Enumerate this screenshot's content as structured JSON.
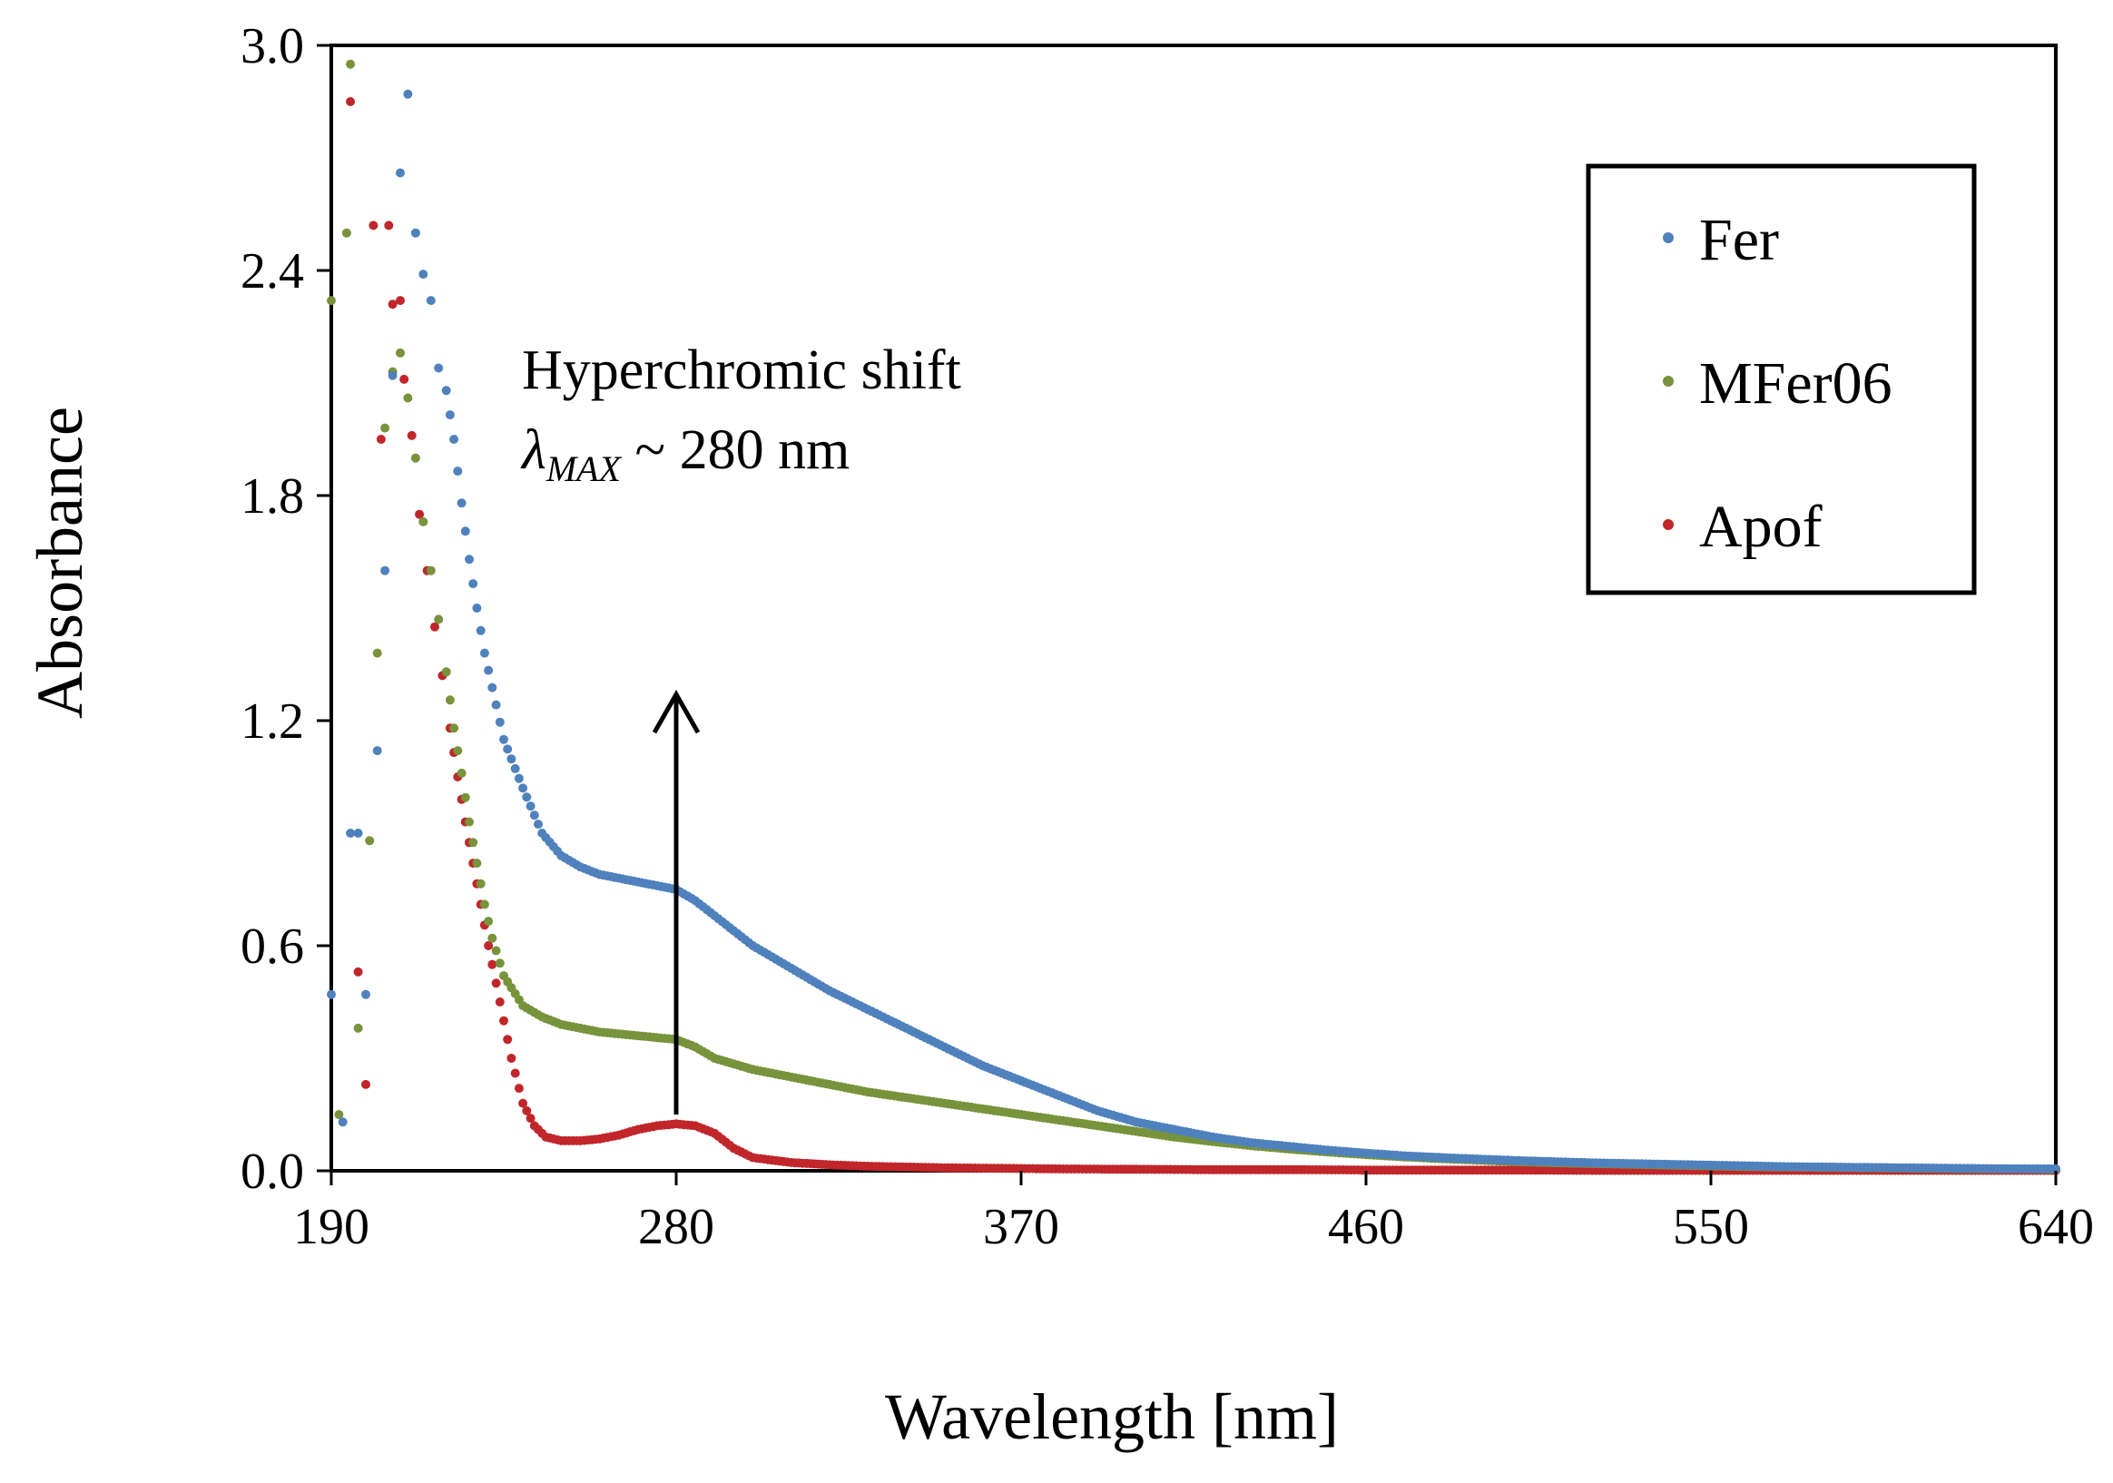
{
  "chart_data": {
    "type": "scatter",
    "title": "",
    "xlabel": "Wavelength [nm]",
    "ylabel": "Absorbance",
    "xlim": [
      190,
      640
    ],
    "ylim": [
      0,
      3.0
    ],
    "xticks": [
      "190",
      "280",
      "370",
      "460",
      "550",
      "640"
    ],
    "yticks": [
      "0.0",
      "0.6",
      "1.2",
      "1.8",
      "2.4",
      "3.0"
    ],
    "grid": false,
    "legend_position": "top-right",
    "annotation": {
      "line1": "Hyperchromic shift",
      "lambda": "λ",
      "subscript": "MAX",
      "line2_rest": " ~ 280 nm",
      "arrow_x": 280,
      "arrow_from": 0.15,
      "arrow_to": 1.27
    },
    "series": [
      {
        "name": "Fer",
        "color": "#4f81bd",
        "x": [
          190,
          193,
          195,
          197,
          199,
          202,
          204,
          206,
          208,
          210,
          212,
          214,
          216,
          218,
          220,
          222,
          224,
          226,
          228,
          230,
          235,
          240,
          245,
          250,
          255,
          260,
          265,
          270,
          275,
          280,
          285,
          290,
          300,
          310,
          320,
          330,
          340,
          350,
          360,
          370,
          380,
          390,
          400,
          410,
          420,
          430,
          440,
          450,
          460,
          470,
          480,
          490,
          500,
          510,
          520,
          530,
          540,
          550,
          560,
          570,
          580,
          590,
          600,
          610,
          620,
          630,
          640
        ],
        "y": [
          0.47,
          0.13,
          0.9,
          0.9,
          0.47,
          1.12,
          1.6,
          2.12,
          2.66,
          2.87,
          2.5,
          2.39,
          2.32,
          2.14,
          2.08,
          1.95,
          1.78,
          1.63,
          1.5,
          1.38,
          1.15,
          1.02,
          0.9,
          0.84,
          0.81,
          0.79,
          0.78,
          0.77,
          0.76,
          0.75,
          0.72,
          0.68,
          0.6,
          0.54,
          0.48,
          0.43,
          0.38,
          0.33,
          0.28,
          0.24,
          0.2,
          0.16,
          0.13,
          0.11,
          0.09,
          0.075,
          0.065,
          0.055,
          0.047,
          0.04,
          0.035,
          0.031,
          0.027,
          0.024,
          0.021,
          0.019,
          0.017,
          0.015,
          0.013,
          0.011,
          0.01,
          0.009,
          0.008,
          0.007,
          0.006,
          0.005,
          0.005
        ]
      },
      {
        "name": "MFer06",
        "color": "#77933c",
        "x": [
          190,
          192,
          194,
          195,
          197,
          200,
          202,
          204,
          206,
          208,
          210,
          212,
          214,
          216,
          218,
          220,
          222,
          224,
          226,
          228,
          230,
          232,
          235,
          240,
          245,
          250,
          255,
          260,
          265,
          270,
          275,
          280,
          285,
          290,
          300,
          310,
          320,
          330,
          340,
          350,
          360,
          370,
          380,
          390,
          400,
          410,
          420,
          430,
          440,
          450,
          460,
          470,
          480,
          490,
          500,
          510,
          520,
          530,
          540,
          550,
          560,
          570,
          580,
          590,
          600,
          610,
          620,
          630,
          640
        ],
        "y": [
          2.32,
          0.15,
          2.5,
          2.95,
          0.38,
          0.88,
          1.38,
          1.98,
          2.13,
          2.18,
          2.06,
          1.9,
          1.73,
          1.6,
          1.47,
          1.33,
          1.18,
          1.06,
          0.93,
          0.82,
          0.71,
          0.62,
          0.52,
          0.44,
          0.41,
          0.39,
          0.38,
          0.37,
          0.365,
          0.36,
          0.355,
          0.35,
          0.33,
          0.3,
          0.27,
          0.25,
          0.23,
          0.21,
          0.195,
          0.18,
          0.165,
          0.15,
          0.135,
          0.12,
          0.105,
          0.09,
          0.078,
          0.067,
          0.058,
          0.05,
          0.043,
          0.037,
          0.032,
          0.028,
          0.024,
          0.021,
          0.019,
          0.017,
          0.015,
          0.013,
          0.011,
          0.01,
          0.009,
          0.008,
          0.007,
          0.006,
          0.005,
          0.005,
          0.004
        ]
      },
      {
        "name": "Apof",
        "color": "#c0262a",
        "x": [
          195,
          197,
          199,
          201,
          203,
          205,
          206,
          208,
          209,
          211,
          213,
          215,
          217,
          219,
          221,
          223,
          225,
          227,
          229,
          231,
          233,
          235,
          237,
          240,
          243,
          246,
          250,
          255,
          260,
          265,
          270,
          275,
          280,
          285,
          290,
          295,
          300,
          310,
          320,
          330,
          340,
          350,
          360,
          380,
          400,
          420,
          440,
          460,
          480,
          500,
          520,
          540,
          560,
          580,
          600,
          620,
          640
        ],
        "y": [
          2.85,
          0.53,
          0.23,
          2.52,
          1.95,
          2.52,
          2.31,
          2.32,
          2.11,
          1.96,
          1.75,
          1.6,
          1.45,
          1.32,
          1.18,
          1.05,
          0.93,
          0.82,
          0.71,
          0.6,
          0.5,
          0.4,
          0.3,
          0.18,
          0.12,
          0.09,
          0.08,
          0.08,
          0.085,
          0.095,
          0.11,
          0.12,
          0.125,
          0.12,
          0.1,
          0.06,
          0.035,
          0.022,
          0.016,
          0.012,
          0.01,
          0.008,
          0.007,
          0.005,
          0.004,
          0.003,
          0.003,
          0.002,
          0.002,
          0.002,
          0.001,
          0.001,
          0.001,
          0.001,
          0.001,
          0.001,
          0.001
        ]
      }
    ]
  }
}
